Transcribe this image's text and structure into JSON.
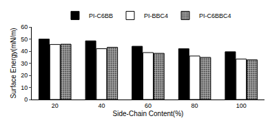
{
  "chart_data": {
    "type": "bar",
    "x_label": "Side-Chain Content(%)",
    "y_label": "Surface Energy(mN/m)",
    "categories": [
      "20",
      "40",
      "60",
      "80",
      "100"
    ],
    "series": [
      {
        "name": "PI-C6BB",
        "color": "#000000",
        "values": [
          50,
          48.5,
          44,
          42,
          39.5
        ]
      },
      {
        "name": "PI-BBC4",
        "color": "#ffffff",
        "values": [
          45.5,
          42,
          38.8,
          36,
          33.5
        ]
      },
      {
        "name": "PI-C6BBC4",
        "color": "#a8a8a8",
        "values": [
          45.7,
          43.2,
          38.2,
          34.8,
          32.8
        ]
      }
    ],
    "ylim": [
      0,
      60
    ],
    "yticks": [
      0,
      10,
      20,
      30,
      40,
      50,
      60
    ],
    "grid": false,
    "legend": "top"
  }
}
